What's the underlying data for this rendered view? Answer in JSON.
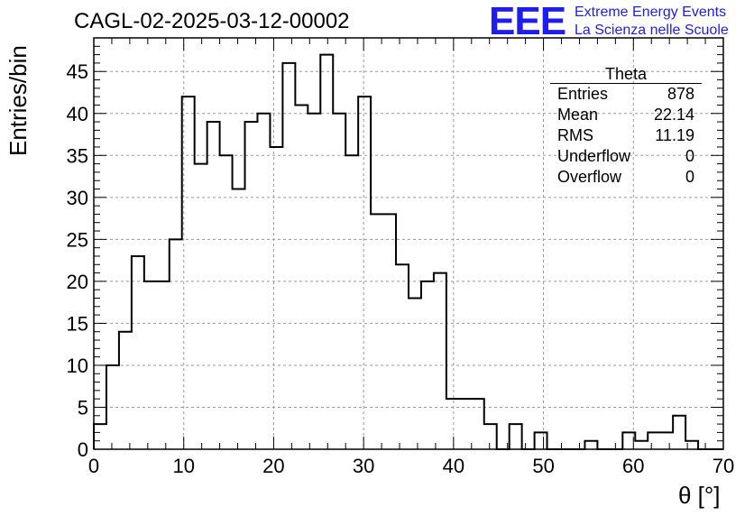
{
  "header": {
    "title": "CAGL-02-2025-03-12-00002",
    "logo_mark": "EEE",
    "logo_line1": "Extreme Energy Events",
    "logo_line2": "La Scienza nelle Scuole"
  },
  "stats": {
    "title": "Theta",
    "rows": [
      {
        "label": "Entries",
        "value": "878"
      },
      {
        "label": "Mean",
        "value": "22.14"
      },
      {
        "label": "RMS",
        "value": "11.19"
      },
      {
        "label": "Underflow",
        "value": "0"
      },
      {
        "label": "Overflow",
        "value": "0"
      }
    ]
  },
  "colors": {
    "logo": "#1d1df2",
    "line": "#000000",
    "grid": "#9a9a9a"
  },
  "chart_data": {
    "type": "histogram",
    "title": "CAGL-02-2025-03-12-00002",
    "xlabel": "θ [°]",
    "ylabel": "Entries/bin",
    "xlim": [
      0,
      70
    ],
    "ylim": [
      0,
      49
    ],
    "grid": true,
    "bin_width": 1.4,
    "x_ticks": [
      0,
      10,
      20,
      30,
      40,
      50,
      60,
      70
    ],
    "y_ticks": [
      0,
      5,
      10,
      15,
      20,
      25,
      30,
      35,
      40,
      45
    ],
    "values": [
      3,
      10,
      14,
      23,
      20,
      20,
      25,
      42,
      34,
      39,
      35,
      31,
      39,
      40,
      36,
      46,
      41,
      40,
      47,
      40,
      35,
      42,
      28,
      28,
      22,
      18,
      20,
      21,
      6,
      6,
      6,
      3,
      0,
      3,
      0,
      2,
      0,
      0,
      0,
      1,
      0,
      0,
      2,
      1,
      2,
      2,
      4,
      1,
      0,
      0
    ]
  }
}
